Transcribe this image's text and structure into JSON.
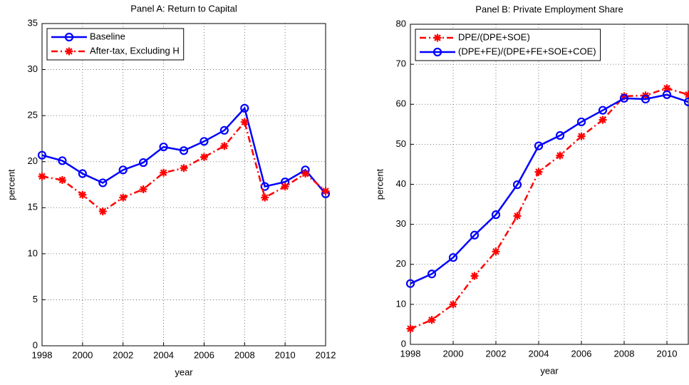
{
  "chart_data": [
    {
      "type": "line",
      "title": "Panel A: Return to Capital",
      "xlabel": "year",
      "ylabel": "percent",
      "x": [
        1998,
        1999,
        2000,
        2001,
        2002,
        2003,
        2004,
        2005,
        2006,
        2007,
        2008,
        2009,
        2010,
        2011,
        2012
      ],
      "xlim": [
        1998,
        2012
      ],
      "xticks": [
        1998,
        2000,
        2002,
        2004,
        2006,
        2008,
        2010,
        2012
      ],
      "ylim": [
        0,
        35
      ],
      "yticks": [
        0,
        5,
        10,
        15,
        20,
        25,
        30,
        35
      ],
      "grid": true,
      "legend": "upper left",
      "series": [
        {
          "name": "Baseline",
          "color": "#0000ff",
          "marker": "o",
          "linestyle": "solid",
          "values": [
            20.7,
            20.1,
            18.7,
            17.7,
            19.1,
            19.9,
            21.6,
            21.2,
            22.2,
            23.4,
            25.8,
            17.3,
            17.8,
            19.1,
            16.5
          ]
        },
        {
          "name": "After-tax, Excluding H",
          "color": "#ff0000",
          "marker": "*",
          "linestyle": "dashdot",
          "values": [
            18.4,
            18.0,
            16.4,
            14.6,
            16.1,
            17.0,
            18.8,
            19.3,
            20.5,
            21.7,
            24.3,
            16.1,
            17.3,
            18.7,
            16.8
          ]
        }
      ]
    },
    {
      "type": "line",
      "title": "Panel B: Private Employment Share",
      "xlabel": "year",
      "ylabel": "percent",
      "x": [
        1998,
        1999,
        2000,
        2001,
        2002,
        2003,
        2004,
        2005,
        2006,
        2007,
        2008,
        2009,
        2010,
        2011
      ],
      "xlim": [
        1998,
        2011
      ],
      "xticks": [
        1998,
        2000,
        2002,
        2004,
        2006,
        2008,
        2010
      ],
      "ylim": [
        0,
        80
      ],
      "yticks": [
        0,
        10,
        20,
        30,
        40,
        50,
        60,
        70,
        80
      ],
      "grid": true,
      "legend": "upper left",
      "series": [
        {
          "name": "DPE/(DPE+SOE)",
          "color": "#ff0000",
          "marker": "*",
          "linestyle": "dashdot",
          "values": [
            3.9,
            6.1,
            10.0,
            17.1,
            23.2,
            32.1,
            43.1,
            47.2,
            52.0,
            56.1,
            62.0,
            62.2,
            64.0,
            62.4
          ]
        },
        {
          "name": "(DPE+FE)/(DPE+FE+SOE+COE)",
          "color": "#0000ff",
          "marker": "o",
          "linestyle": "solid",
          "values": [
            15.2,
            17.6,
            21.7,
            27.3,
            32.4,
            39.9,
            49.6,
            52.2,
            55.6,
            58.5,
            61.5,
            61.3,
            62.4,
            60.6
          ]
        }
      ]
    }
  ]
}
